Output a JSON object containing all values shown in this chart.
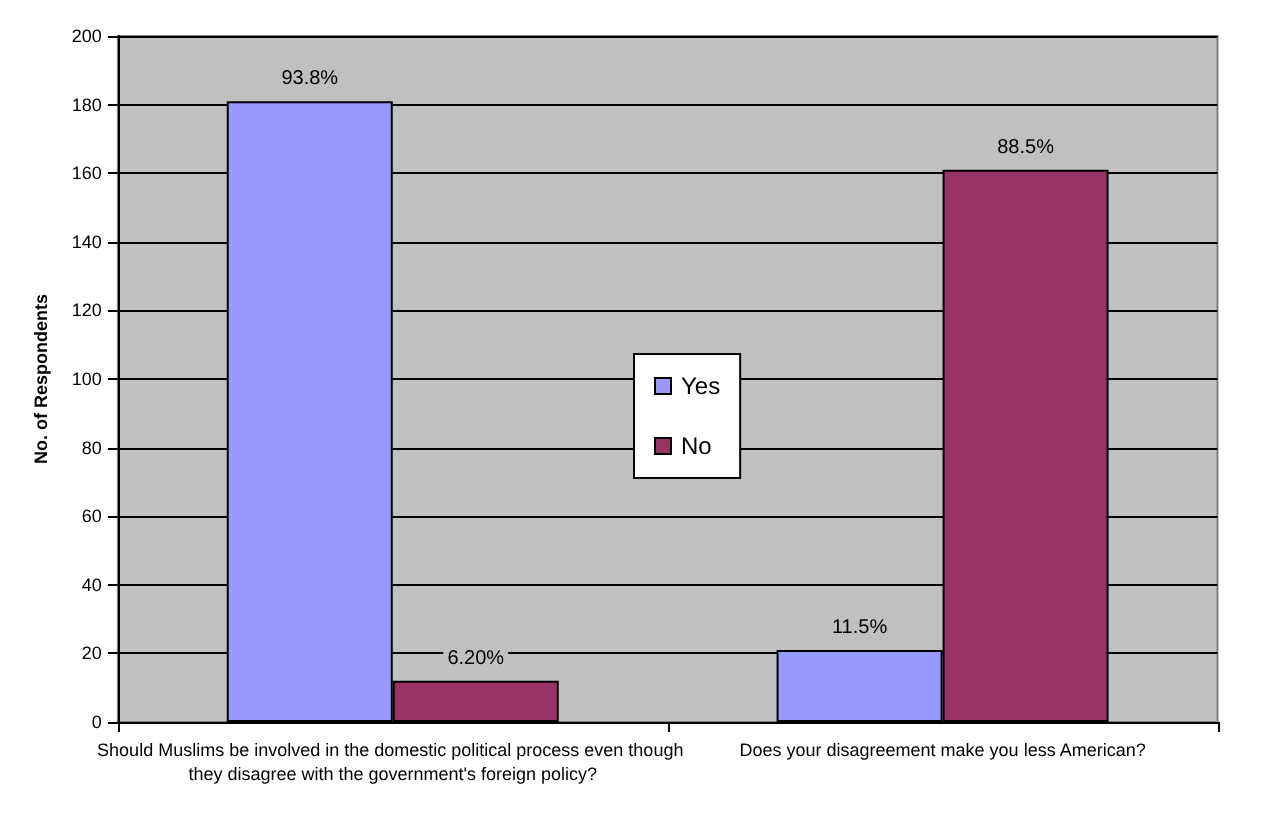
{
  "chart_data": {
    "type": "bar",
    "ylabel": "No. of Respondents",
    "categories": [
      "Should Muslims be involved in the domestic political process even though they disagree with the government's foreign policy?",
      "Does your disagreement make you less American?"
    ],
    "series": [
      {
        "name": "Yes",
        "color": "#9999ff",
        "values": [
          181,
          21
        ]
      },
      {
        "name": "No",
        "color": "#993366",
        "values": [
          12,
          161
        ]
      }
    ],
    "annotations": [
      {
        "text": "93.8%",
        "x": "Should Muslims be involved in the domestic political process even though they disagree with the government's foreign policy?",
        "y": 181
      },
      {
        "text": "6.20%",
        "x": "Should Muslims be involved in the domestic political process even though they disagree with the government's foreign policy?",
        "y": 12
      },
      {
        "text": "11.5%",
        "x": "Does your disagreement make you less American?",
        "y": 21
      },
      {
        "text": "88.5%",
        "x": "Does your disagreement make you less American?",
        "y": 161
      }
    ],
    "ylim": [
      0,
      200
    ],
    "yticks": [
      0,
      20,
      40,
      60,
      80,
      100,
      120,
      140,
      160,
      180,
      200
    ],
    "grid": "y",
    "legend": "center"
  }
}
